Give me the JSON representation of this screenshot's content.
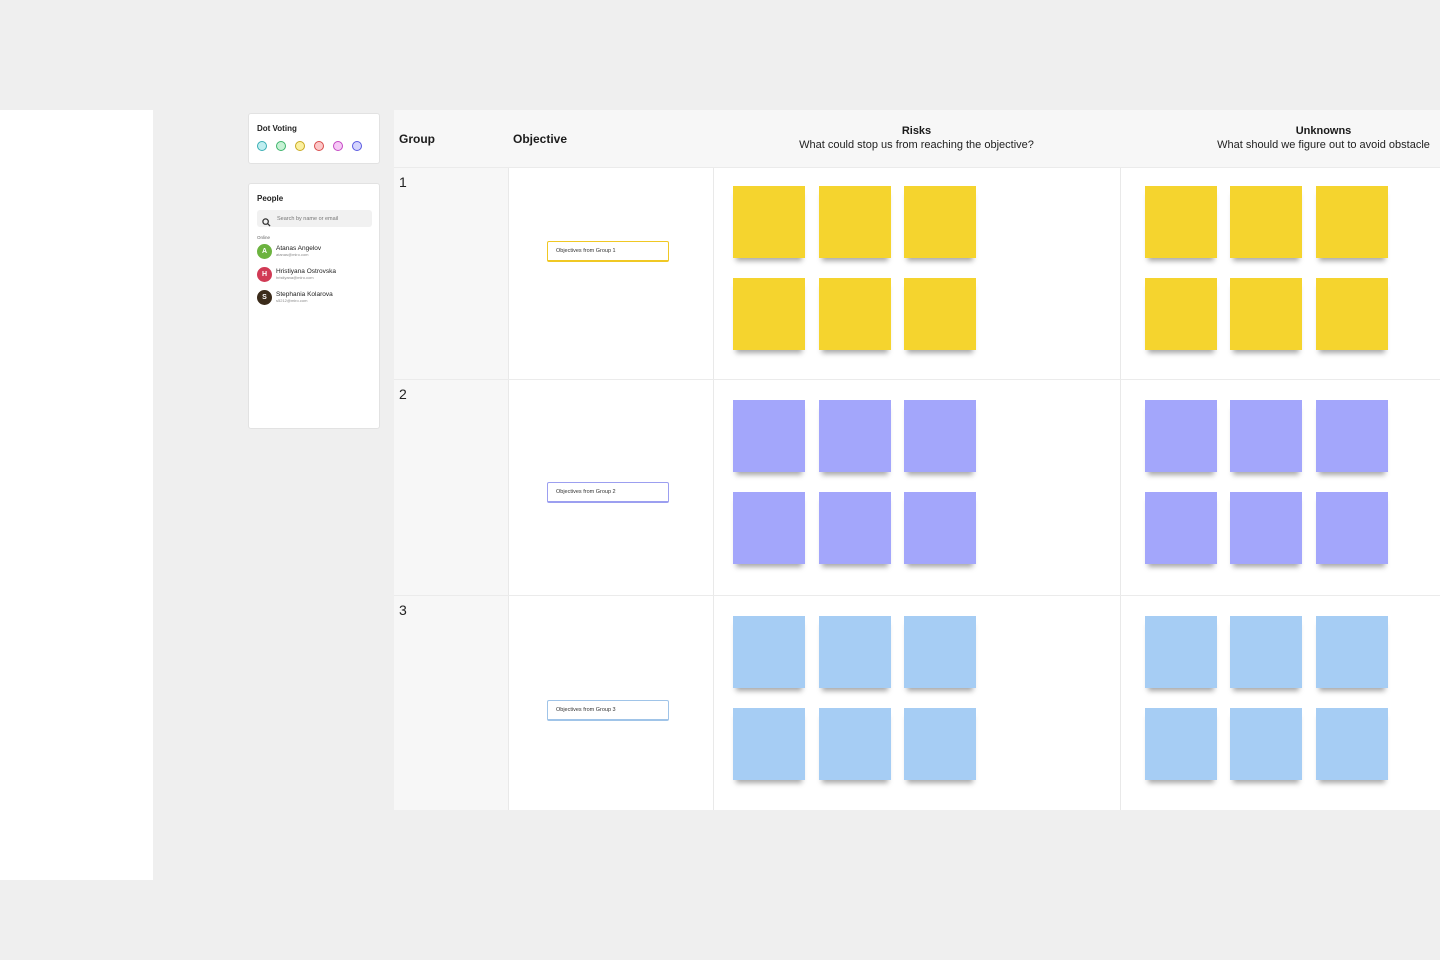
{
  "dot_voting": {
    "title": "Dot Voting",
    "dots": [
      {
        "name": "teal-dot",
        "fill": "#bfeef0",
        "border": "#38aeb4"
      },
      {
        "name": "green-dot",
        "fill": "#c6f1d4",
        "border": "#3cb46a"
      },
      {
        "name": "yellow-dot",
        "fill": "#fbf0a0",
        "border": "#c9aa20"
      },
      {
        "name": "red-dot",
        "fill": "#fcc8c8",
        "border": "#d84b4b"
      },
      {
        "name": "pink-dot",
        "fill": "#f6c8f6",
        "border": "#c448c4"
      },
      {
        "name": "purple-dot",
        "fill": "#d4d4fd",
        "border": "#5a5ae0"
      }
    ]
  },
  "people": {
    "title": "People",
    "search_placeholder": "Search by name or email",
    "online_label": "Online",
    "list": [
      {
        "initial": "A",
        "name": "Atanas Angelov",
        "email": "atanas@miro.com",
        "color": "#6cb33f"
      },
      {
        "initial": "H",
        "name": "Hristiyana Ostrovska",
        "email": "hristiyana@miro.com",
        "color": "#d13a55"
      },
      {
        "initial": "S",
        "name": "Stephania Kolarova",
        "email": "s5212@miro.com",
        "color": "#3b2b1a"
      }
    ]
  },
  "table": {
    "headers": {
      "group": "Group",
      "objective": "Objective",
      "risks_title": "Risks",
      "risks_subtitle": "What could stop us from reaching the objective?",
      "unknowns_title": "Unknowns",
      "unknowns_subtitle": "What should we figure out to avoid obstacle"
    },
    "rows": [
      {
        "group": "1",
        "objective": "Objectives from Group 1",
        "sticky_color": "#f5d42e",
        "border": "#f0c824"
      },
      {
        "group": "2",
        "objective": "Objectives from Group 2",
        "sticky_color": "#a3a6fb",
        "border": "#9c9ff0"
      },
      {
        "group": "3",
        "objective": "Objectives from Group 3",
        "sticky_color": "#a6cdf4",
        "border": "#a0c4e8"
      }
    ]
  }
}
